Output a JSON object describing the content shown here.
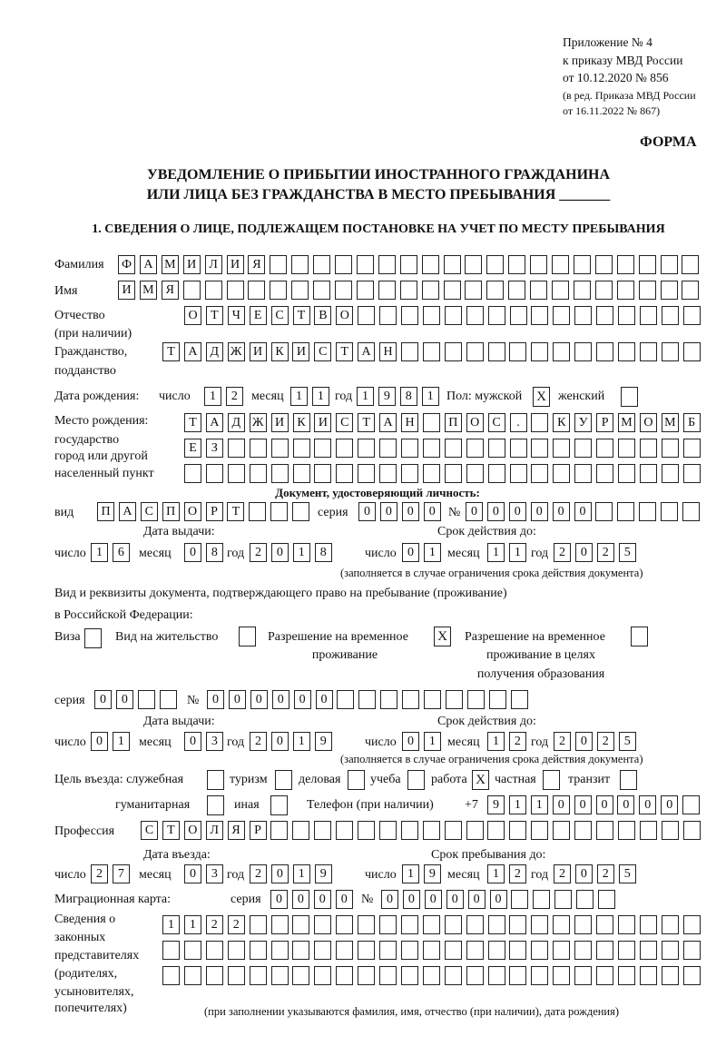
{
  "header": {
    "appendix": "Приложение № 4",
    "order": "к приказу МВД России",
    "order_date": "от 10.12.2020 № 856",
    "amend1": "(в ред. Приказа МВД России",
    "amend2": "от 16.11.2022 № 867)",
    "form_label": "ФОРМА"
  },
  "title": {
    "line1": "УВЕДОМЛЕНИЕ О ПРИБЫТИИ ИНОСТРАННОГО ГРАЖДАНИНА",
    "line2": "ИЛИ ЛИЦА БЕЗ ГРАЖДАНСТВА В МЕСТО ПРЕБЫВАНИЯ _______"
  },
  "section1": {
    "heading": "1. СВЕДЕНИЯ О ЛИЦЕ, ПОДЛЕЖАЩЕМ ПОСТАНОВКЕ НА УЧЕТ ПО МЕСТУ ПРЕБЫВАНИЯ"
  },
  "labels": {
    "surname": "Фамилия",
    "name": "Имя",
    "patronymic": "Отчество",
    "patronymic_note": "(при наличии)",
    "citizenship1": "Гражданство,",
    "citizenship2": "подданство",
    "birth_date": "Дата рождения:",
    "day": "число",
    "month": "месяц",
    "year": "год",
    "sex": "Пол: мужской",
    "female": "женский",
    "birth_place1": "Место рождения:",
    "birth_place2": "государство",
    "birth_place3": "город или другой",
    "birth_place4": "населенный пункт",
    "id_doc": "Документ, удостоверяющий личность:",
    "kind": "вид",
    "series": "серия",
    "number": "№",
    "issue_date": "Дата выдачи:",
    "valid_until": "Срок действия до:",
    "validity_note": "(заполняется в случае ограничения срока действия документа)",
    "stay_doc1": "Вид и реквизиты документа, подтверждающего право на пребывание (проживание)",
    "stay_doc2": "в Российской Федерации:",
    "visa": "Виза",
    "residence": "Вид на жительство",
    "trp1": "Разрешение на временное",
    "trp2": "проживание",
    "trp_edu1": "Разрешение на временное",
    "trp_edu2": "проживание в целях",
    "trp_edu3": "получения образования",
    "purpose": "Цель въезда: служебная",
    "tourism": "туризм",
    "business": "деловая",
    "study": "учеба",
    "work": "работа",
    "private": "частная",
    "transit": "транзит",
    "humanitarian": "гуманитарная",
    "other": "иная",
    "phone": "Телефон (при наличии)",
    "phone_prefix": "+7",
    "profession": "Профессия",
    "entry_date": "Дата въезда:",
    "stay_until": "Срок пребывания до:",
    "migration_card": "Миграционная карта:",
    "reps1": "Сведения о",
    "reps2": "законных",
    "reps3": "представителях",
    "reps4": "(родителях,",
    "reps5": "усыновителях,",
    "reps6": "попечителях)",
    "reps_note": "(при заполнении указываются фамилия, имя, отчество (при наличии), дата рождения)"
  },
  "person": {
    "surname": "ФАМИЛИЯ",
    "name": "ИМЯ",
    "patronymic": "ОТЧЕСТВО",
    "citizenship": "ТАДЖИКИСТАН",
    "birth_day": "12",
    "birth_month": "11",
    "birth_year": "1981",
    "sex_male": "X",
    "sex_female": "",
    "birth_place_1": "ТАДЖИКИСТАН ПОС. КУРМОМБ",
    "birth_place_2": "ЕЗ",
    "birth_place_3": ""
  },
  "id_document": {
    "kind": "ПАСПОРТ",
    "series": "0000",
    "number": "000000",
    "issue_day": "16",
    "issue_month": "08",
    "issue_year": "2018",
    "valid_day": "01",
    "valid_month": "11",
    "valid_year": "2025"
  },
  "stay_document": {
    "visa": "",
    "residence_permit": "",
    "temporary_residence": "X",
    "temporary_residence_education": "",
    "series": "00",
    "number": "000000",
    "issue_day": "01",
    "issue_month": "03",
    "issue_year": "2019",
    "valid_day": "01",
    "valid_month": "12",
    "valid_year": "2025"
  },
  "purpose": {
    "official": "",
    "tourism": "",
    "business": "",
    "study": "",
    "work": "X",
    "private": "",
    "transit": "",
    "humanitarian": "",
    "other": ""
  },
  "phone": "911000000",
  "profession": "СТОЛЯР",
  "entry": {
    "day": "27",
    "month": "03",
    "year": "2019",
    "stay_day": "19",
    "stay_month": "12",
    "stay_year": "2025"
  },
  "migration_card": {
    "series": "0000",
    "number": "000000"
  },
  "representatives": {
    "row1": "1122",
    "row2": "",
    "row3": ""
  }
}
